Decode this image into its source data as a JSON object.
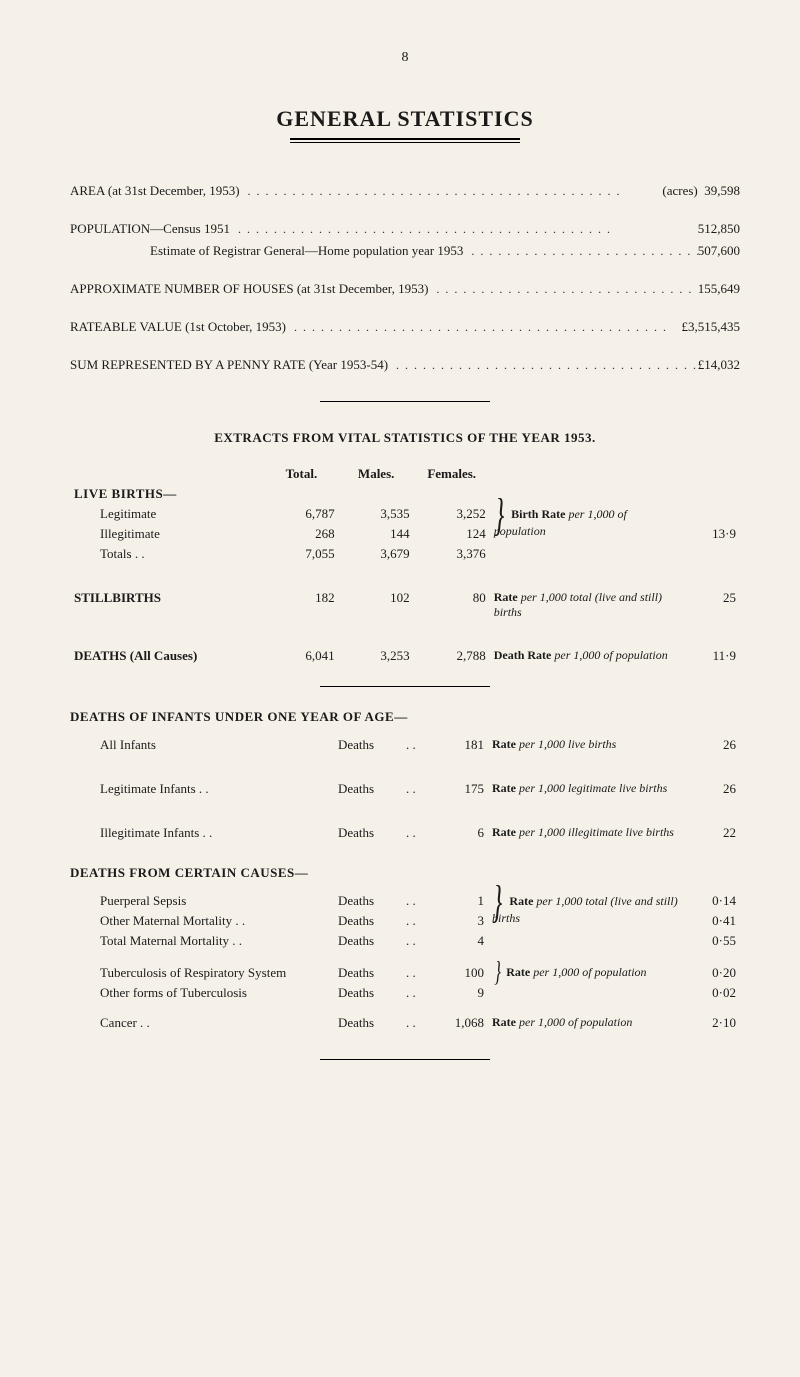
{
  "page_number": "8",
  "title": "GENERAL STATISTICS",
  "summary_lines": [
    {
      "label": "AREA (at 31st December, 1953)",
      "indent": false,
      "value": "(acres)  39,598"
    },
    {
      "gap": true
    },
    {
      "label": "POPULATION—Census 1951",
      "indent": false,
      "value": "512,850"
    },
    {
      "label": "Estimate of Registrar General—Home population year 1953",
      "indent": true,
      "value": "507,600"
    },
    {
      "gap": true
    },
    {
      "label": "APPROXIMATE NUMBER OF HOUSES (at 31st December, 1953)",
      "indent": false,
      "value": "155,649"
    },
    {
      "gap": true
    },
    {
      "label": "RATEABLE VALUE (1st October, 1953)",
      "indent": false,
      "value": "£3,515,435"
    },
    {
      "gap": true
    },
    {
      "label": "SUM REPRESENTED BY A PENNY RATE (Year 1953-54)",
      "indent": false,
      "value": "£14,032"
    }
  ],
  "extracts_title": "EXTRACTS FROM VITAL STATISTICS OF THE YEAR 1953.",
  "vitals_headers": {
    "total": "Total.",
    "males": "Males.",
    "females": "Females."
  },
  "live_births_head": "LIVE BIRTHS—",
  "live_births": {
    "rows": [
      {
        "label": "Legitimate",
        "total": "6,787",
        "males": "3,535",
        "females": "3,252"
      },
      {
        "label": "Illegitimate",
        "total": "268",
        "males": "144",
        "females": "124"
      },
      {
        "label": "Totals . .",
        "total": "7,055",
        "males": "3,679",
        "females": "3,376"
      }
    ],
    "note_lead": "Birth Rate",
    "note_rest": " per 1,000 of population",
    "rate": "13·9"
  },
  "stillbirths": {
    "label": "STILLBIRTHS",
    "total": "182",
    "males": "102",
    "females": "80",
    "note_lead": "Rate",
    "note_rest": " per 1,000 total (live and still) births",
    "rate": "25"
  },
  "deaths_all": {
    "label": "DEATHS (All Causes)",
    "total": "6,041",
    "males": "3,253",
    "females": "2,788",
    "note_lead": "Death Rate",
    "note_rest": " per 1,000 of population",
    "rate": "11·9"
  },
  "infants_title": "DEATHS OF INFANTS UNDER ONE YEAR OF AGE—",
  "infants": [
    {
      "label": "All Infants",
      "n": "181",
      "note_lead": "Rate",
      "note_rest": " per 1,000 live births",
      "rate": "26"
    },
    {
      "label": "Legitimate Infants . .",
      "n": "175",
      "note_lead": "Rate",
      "note_rest": " per 1,000 legitimate live births",
      "rate": "26"
    },
    {
      "label": "Illegitimate Infants . .",
      "n": "6",
      "note_lead": "Rate",
      "note_rest": " per 1,000 illegitimate live births",
      "rate": "22"
    }
  ],
  "certain_title": "DEATHS FROM CERTAIN CAUSES—",
  "certain_group1": {
    "rows": [
      {
        "label": "Puerperal Sepsis",
        "n": "1"
      },
      {
        "label": "Other Maternal Mortality  . .",
        "n": "3"
      },
      {
        "label": "Total Maternal Mortality  . .",
        "n": "4"
      }
    ],
    "note_lead": "Rate",
    "note_rest": " per 1,000 total (live and still) births",
    "rates": [
      "0·14",
      "0·41",
      "0·55"
    ]
  },
  "certain_group2": {
    "rows": [
      {
        "label": "Tuberculosis of Respiratory System",
        "n": "100"
      },
      {
        "label": "Other forms of Tuberculosis",
        "n": "9"
      }
    ],
    "note_lead": "Rate",
    "note_rest": " per 1,000 of population",
    "rates": [
      "0·20",
      "0·02"
    ]
  },
  "cancer": {
    "label": "Cancer . .",
    "n": "1,068",
    "note_lead": "Rate",
    "note_rest": " per 1,000 of population",
    "rate": "2·10"
  },
  "deaths_word": "Deaths",
  "dots_short": ". ."
}
